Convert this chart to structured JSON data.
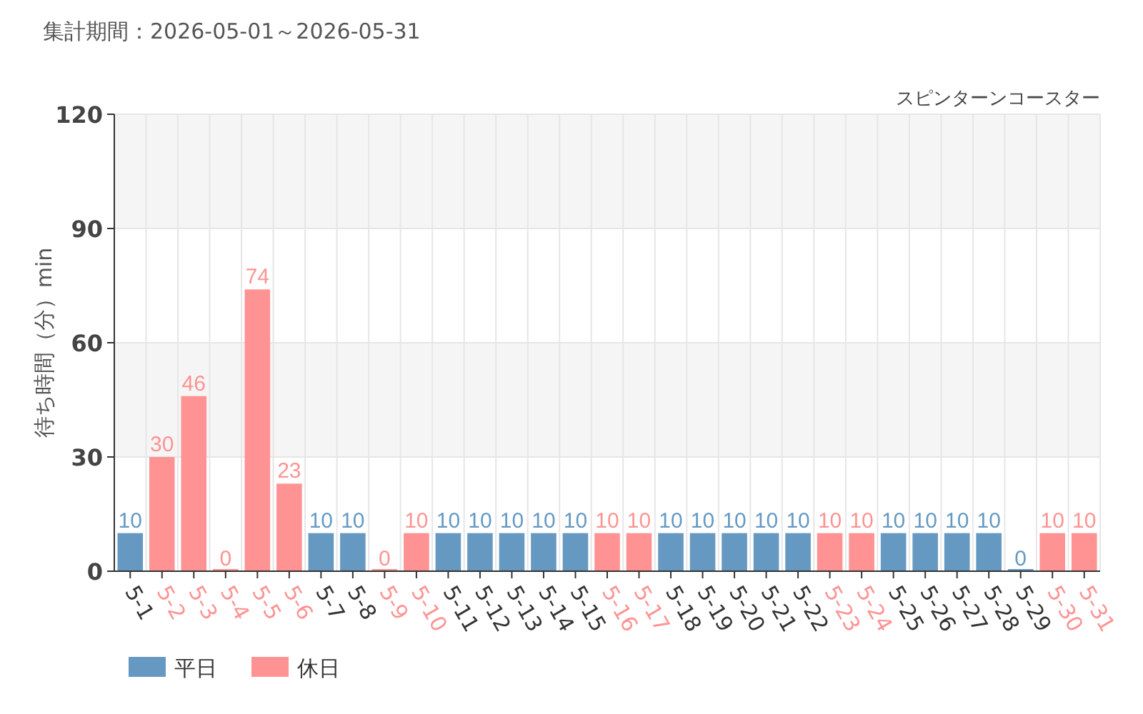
{
  "chart_data": {
    "type": "bar",
    "title": "集計期間：2026-05-01～2026-05-31",
    "subtitle": "スピンターンコースター",
    "ylabel": "待ち時間（分）min",
    "categories": [
      "5-1",
      "5-2",
      "5-3",
      "5-4",
      "5-5",
      "5-6",
      "5-7",
      "5-8",
      "5-9",
      "5-10",
      "5-11",
      "5-12",
      "5-13",
      "5-14",
      "5-15",
      "5-16",
      "5-17",
      "5-18",
      "5-19",
      "5-20",
      "5-21",
      "5-22",
      "5-23",
      "5-24",
      "5-25",
      "5-26",
      "5-27",
      "5-28",
      "5-29",
      "5-30",
      "5-31"
    ],
    "series": [
      {
        "name": "平日",
        "color": "#6699c2",
        "values": [
          10,
          null,
          null,
          null,
          null,
          null,
          10,
          10,
          null,
          null,
          10,
          10,
          10,
          10,
          10,
          null,
          null,
          10,
          10,
          10,
          10,
          10,
          null,
          null,
          10,
          10,
          10,
          10,
          0,
          null,
          null
        ]
      },
      {
        "name": "休日",
        "color": "#ff9393",
        "values": [
          null,
          30,
          46,
          0,
          74,
          23,
          null,
          null,
          0,
          10,
          null,
          null,
          null,
          null,
          null,
          10,
          10,
          null,
          null,
          null,
          null,
          null,
          10,
          10,
          null,
          null,
          null,
          null,
          null,
          10,
          10
        ]
      }
    ],
    "ylim": [
      0,
      120
    ],
    "yticks": [
      0,
      30,
      60,
      90,
      120
    ],
    "grid": true,
    "legend": "bottom left",
    "data_labels": true
  }
}
